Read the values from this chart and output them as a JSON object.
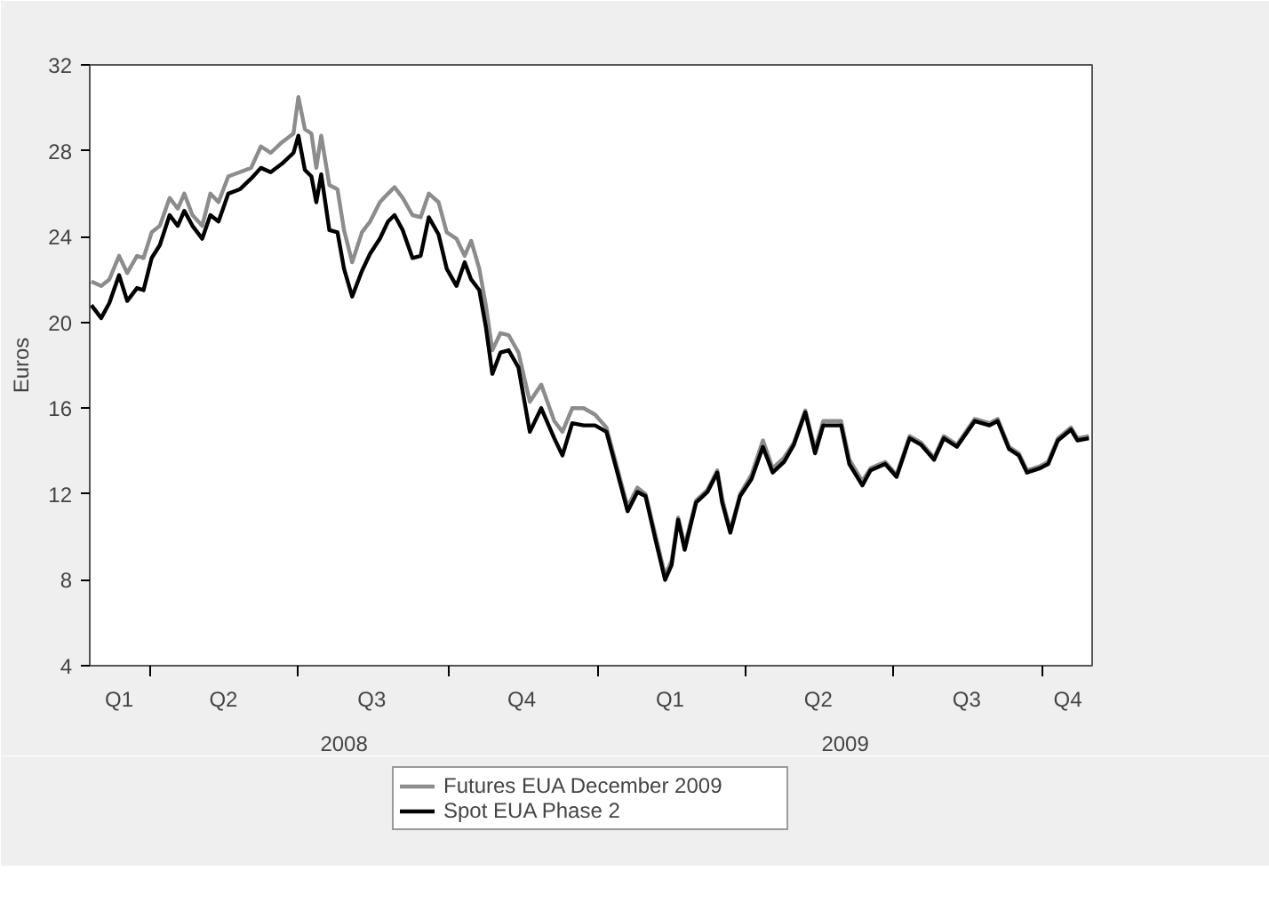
{
  "chart_data": {
    "type": "line",
    "ylabel": "Euros",
    "xlim": [
      "2008-02-24",
      "2009-10-31"
    ],
    "ylim": [
      4,
      32
    ],
    "yticks": [
      4,
      8,
      12,
      16,
      20,
      24,
      28,
      32
    ],
    "xticks": [
      {
        "value": "2008-03-13",
        "label": "Q1"
      },
      {
        "value": "2008-04-01",
        "label": null
      },
      {
        "value": "2008-05-16",
        "label": "Q2"
      },
      {
        "value": "2008-07-01",
        "label": null
      },
      {
        "value": "2008-08-15",
        "label": "Q3"
      },
      {
        "value": "2008-10-01",
        "label": null
      },
      {
        "value": "2008-11-15",
        "label": "Q4"
      },
      {
        "value": "2009-01-01",
        "label": null
      },
      {
        "value": "2009-02-14",
        "label": "Q1"
      },
      {
        "value": "2009-04-01",
        "label": null
      },
      {
        "value": "2009-05-16",
        "label": "Q2"
      },
      {
        "value": "2009-07-01",
        "label": null
      },
      {
        "value": "2009-08-15",
        "label": "Q3"
      },
      {
        "value": "2009-10-01",
        "label": null
      },
      {
        "value": "2009-10-16",
        "label": "Q4"
      }
    ],
    "annotations": [
      "2008",
      "2009"
    ],
    "legend": "bottom",
    "line_style": "solid",
    "marker": "none",
    "x": [
      "2008-02-25",
      "2008-03-02",
      "2008-03-07",
      "2008-03-13",
      "2008-03-18",
      "2008-03-24",
      "2008-03-28",
      "2008-04-02",
      "2008-04-07",
      "2008-04-13",
      "2008-04-18",
      "2008-04-22",
      "2008-04-27",
      "2008-05-03",
      "2008-05-08",
      "2008-05-13",
      "2008-05-19",
      "2008-05-26",
      "2008-06-02",
      "2008-06-08",
      "2008-06-14",
      "2008-06-21",
      "2008-06-28",
      "2008-07-01",
      "2008-07-05",
      "2008-07-09",
      "2008-07-12",
      "2008-07-15",
      "2008-07-20",
      "2008-07-25",
      "2008-07-29",
      "2008-08-03",
      "2008-08-09",
      "2008-08-14",
      "2008-08-20",
      "2008-08-25",
      "2008-08-29",
      "2008-09-03",
      "2008-09-09",
      "2008-09-14",
      "2008-09-19",
      "2008-09-25",
      "2008-09-30",
      "2008-10-06",
      "2008-10-11",
      "2008-10-15",
      "2008-10-20",
      "2008-10-24",
      "2008-10-28",
      "2008-11-02",
      "2008-11-07",
      "2008-11-13",
      "2008-11-20",
      "2008-11-27",
      "2008-12-05",
      "2008-12-10",
      "2008-12-16",
      "2008-12-23",
      "2008-12-30",
      "2009-01-06",
      "2009-01-12",
      "2009-01-19",
      "2009-01-25",
      "2009-01-30",
      "2009-02-05",
      "2009-02-11",
      "2009-02-15",
      "2009-02-19",
      "2009-02-23",
      "2009-03-02",
      "2009-03-09",
      "2009-03-15",
      "2009-03-18",
      "2009-03-23",
      "2009-03-29",
      "2009-04-05",
      "2009-04-12",
      "2009-04-18",
      "2009-04-25",
      "2009-05-01",
      "2009-05-08",
      "2009-05-14",
      "2009-05-19",
      "2009-05-30",
      "2009-06-04",
      "2009-06-12",
      "2009-06-17",
      "2009-06-26",
      "2009-07-03",
      "2009-07-11",
      "2009-07-18",
      "2009-07-26",
      "2009-08-01",
      "2009-08-09",
      "2009-08-20",
      "2009-08-29",
      "2009-09-03",
      "2009-09-10",
      "2009-09-16",
      "2009-09-21",
      "2009-09-29",
      "2009-10-04",
      "2009-10-10",
      "2009-10-18",
      "2009-10-22",
      "2009-10-29"
    ],
    "series": [
      {
        "name": "Futures EUA December 2009",
        "color": "#8c8c8c",
        "values": [
          21.9,
          21.7,
          22.0,
          23.1,
          22.3,
          23.1,
          23.0,
          24.2,
          24.5,
          25.8,
          25.3,
          26.0,
          25.0,
          24.5,
          26.0,
          25.6,
          26.8,
          27.0,
          27.2,
          28.2,
          27.9,
          28.4,
          28.8,
          30.5,
          29.0,
          28.8,
          27.2,
          28.7,
          26.4,
          26.2,
          24.3,
          22.8,
          24.2,
          24.7,
          25.6,
          26.0,
          26.3,
          25.8,
          25.0,
          24.9,
          26.0,
          25.6,
          24.2,
          23.9,
          23.1,
          23.8,
          22.5,
          20.8,
          18.7,
          19.5,
          19.4,
          18.6,
          16.3,
          17.1,
          15.4,
          14.9,
          16.0,
          16.0,
          15.7,
          15.1,
          13.4,
          11.4,
          12.3,
          12.0,
          10.1,
          8.2,
          8.9,
          10.9,
          9.6,
          11.7,
          12.2,
          13.1,
          11.8,
          10.3,
          12.0,
          12.9,
          14.5,
          13.2,
          13.7,
          14.4,
          15.9,
          14.1,
          15.4,
          15.4,
          13.6,
          12.6,
          13.2,
          13.5,
          12.9,
          14.7,
          14.4,
          13.7,
          14.7,
          14.3,
          15.5,
          15.3,
          15.5,
          14.2,
          13.9,
          13.1,
          13.3,
          13.5,
          14.6,
          15.1,
          14.6,
          14.7
        ]
      },
      {
        "name": "Spot EUA Phase 2",
        "color": "#000000",
        "values": [
          20.8,
          20.2,
          20.9,
          22.2,
          21.0,
          21.6,
          21.5,
          23.0,
          23.6,
          25.0,
          24.5,
          25.2,
          24.5,
          23.9,
          25.0,
          24.7,
          26.0,
          26.2,
          26.7,
          27.2,
          27.0,
          27.4,
          27.9,
          28.7,
          27.1,
          26.8,
          25.6,
          26.9,
          24.3,
          24.2,
          22.5,
          21.2,
          22.4,
          23.2,
          23.9,
          24.7,
          25.0,
          24.3,
          23.0,
          23.1,
          24.9,
          24.1,
          22.5,
          21.7,
          22.8,
          22.0,
          21.5,
          19.8,
          17.6,
          18.6,
          18.7,
          17.9,
          14.9,
          16.0,
          14.6,
          13.8,
          15.3,
          15.2,
          15.2,
          14.9,
          13.2,
          11.2,
          12.1,
          11.9,
          9.9,
          8.0,
          8.7,
          10.8,
          9.4,
          11.6,
          12.1,
          13.0,
          11.6,
          10.2,
          11.9,
          12.7,
          14.2,
          13.0,
          13.5,
          14.3,
          15.8,
          13.9,
          15.2,
          15.2,
          13.4,
          12.4,
          13.1,
          13.4,
          12.8,
          14.6,
          14.3,
          13.6,
          14.6,
          14.2,
          15.4,
          15.2,
          15.4,
          14.1,
          13.8,
          13.0,
          13.2,
          13.4,
          14.5,
          15.0,
          14.5,
          14.6
        ]
      }
    ]
  }
}
